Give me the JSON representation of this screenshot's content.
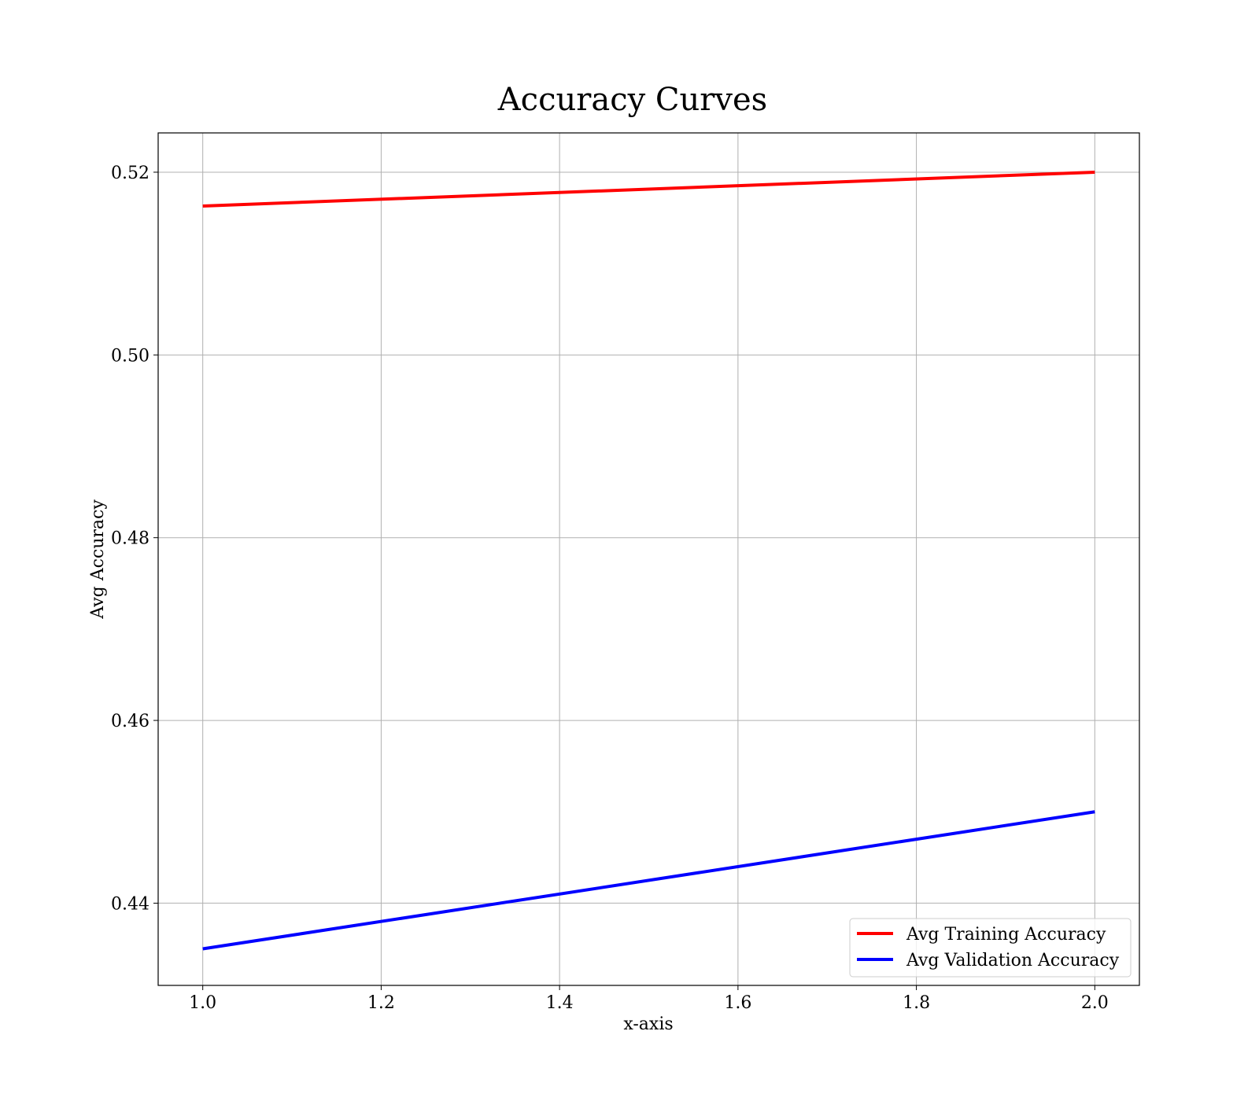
{
  "chart_data": {
    "type": "line",
    "title": "Accuracy Curves",
    "xlabel": "x-axis",
    "ylabel": "Avg Accuracy",
    "x": [
      1.0,
      2.0
    ],
    "xlim": [
      0.95,
      2.05
    ],
    "ylim": [
      0.431,
      0.5243
    ],
    "xticks": [
      1.0,
      1.2,
      1.4,
      1.6,
      1.8,
      2.0
    ],
    "xtick_labels": [
      "1.0",
      "1.2",
      "1.4",
      "1.6",
      "1.8",
      "2.0"
    ],
    "yticks": [
      0.44,
      0.46,
      0.48,
      0.5,
      0.52
    ],
    "ytick_labels": [
      "0.44",
      "0.46",
      "0.48",
      "0.50",
      "0.52"
    ],
    "grid": true,
    "legend_position": "lower-right",
    "series": [
      {
        "name": "Avg Training Accuracy",
        "color": "#ff0000",
        "values": [
          0.5163,
          0.52
        ]
      },
      {
        "name": "Avg Validation Accuracy",
        "color": "#0000ff",
        "values": [
          0.435,
          0.45
        ]
      }
    ]
  }
}
